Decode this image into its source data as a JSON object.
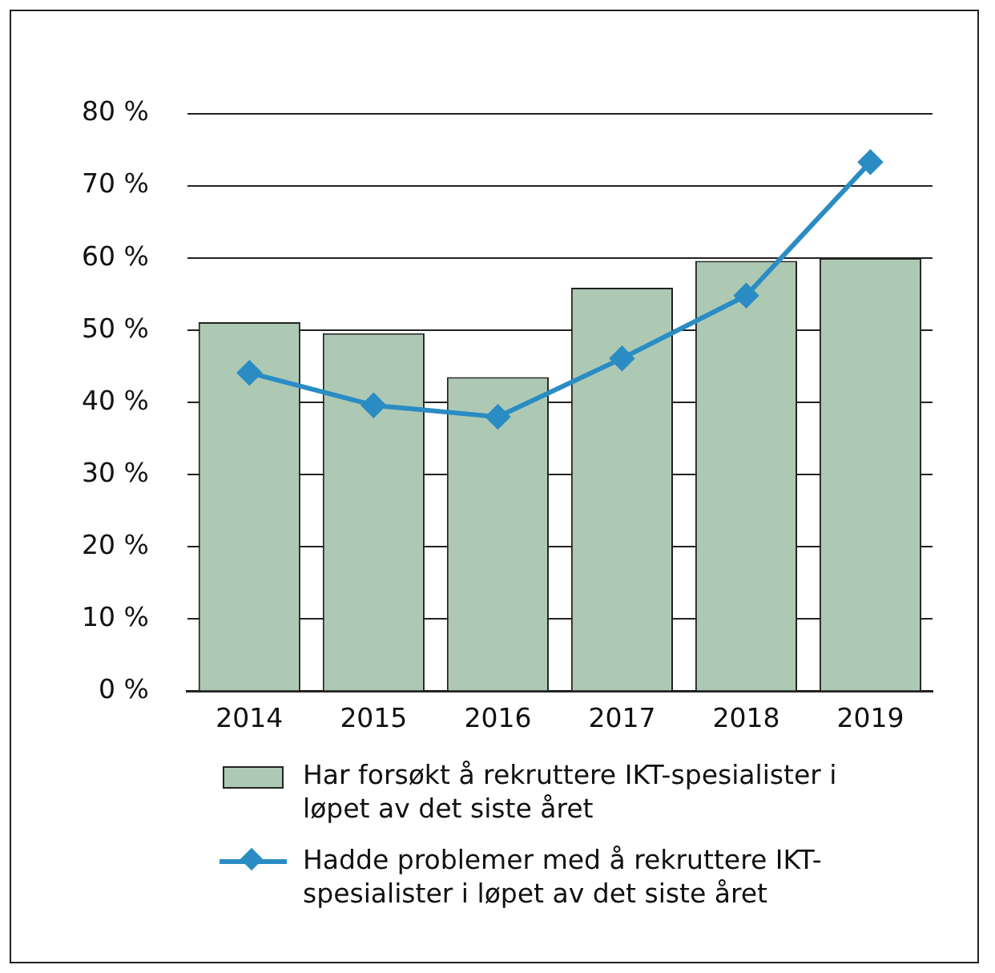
{
  "chart_data": {
    "type": "bar",
    "categories": [
      "2014",
      "2015",
      "2016",
      "2017",
      "2018",
      "2019"
    ],
    "series": [
      {
        "name": "Har forsøkt å rekruttere IKT-spesialister i løpet av det siste året",
        "color": "#adc9b4",
        "values": [
          51.1,
          49.6,
          43.5,
          55.9,
          59.6,
          60.0
        ]
      },
      {
        "name": "Hadde problemer med å rekruttere IKT-spesialister i løpet av det siste året",
        "type": "line",
        "color": "#2b8cc4",
        "values": [
          44.1,
          39.6,
          38.0,
          46.1,
          54.8,
          73.3
        ]
      }
    ],
    "ylim": [
      0,
      80
    ],
    "yticks": [
      {
        "value": 0,
        "label": "0 %"
      },
      {
        "value": 10,
        "label": "10 %"
      },
      {
        "value": 20,
        "label": "20 %"
      },
      {
        "value": 30,
        "label": "30 %"
      },
      {
        "value": 40,
        "label": "40 %"
      },
      {
        "value": 50,
        "label": "50 %"
      },
      {
        "value": 60,
        "label": "60 %"
      },
      {
        "value": 70,
        "label": "70 %"
      },
      {
        "value": 80,
        "label": "80 %"
      }
    ],
    "grid": "y",
    "legend": "bottom",
    "marker": "diamond",
    "line_style": "solid"
  }
}
